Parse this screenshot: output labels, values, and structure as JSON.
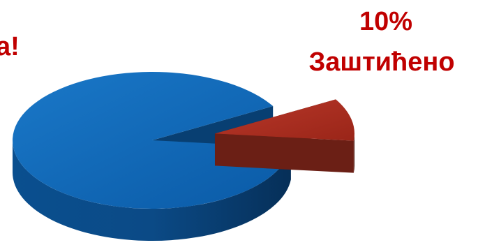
{
  "chart_data": {
    "type": "pie",
    "style": "3d-exploded",
    "slices": [
      {
        "label": "Заштићено",
        "value": 10,
        "color": "#a52a1c",
        "exploded": true
      },
      {
        "label": "",
        "value": 90,
        "color": "#0b62b0",
        "exploded": false
      }
    ],
    "annotations": {
      "protected_percent": "10%",
      "protected_label": "Заштићено",
      "other_label_visible_tail": "а!"
    }
  }
}
